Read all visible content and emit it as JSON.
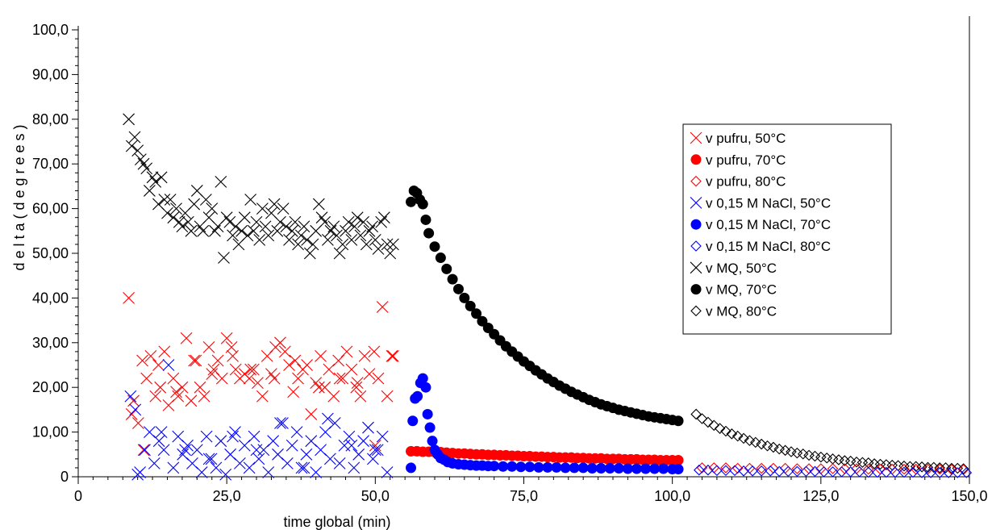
{
  "chart_data": {
    "type": "scatter",
    "title": "",
    "xlabel": "time global (min)",
    "ylabel": "d e l t a   ( d e g r e e s )",
    "xlim": [
      0,
      150
    ],
    "ylim": [
      0,
      100
    ],
    "x_ticks": [
      0,
      25,
      50,
      75,
      100,
      125,
      150
    ],
    "x_tick_labels": [
      "0",
      "25,0",
      "50,0",
      "75,0",
      "100,0",
      "125,0",
      "150,0"
    ],
    "y_ticks": [
      0,
      10,
      20,
      30,
      40,
      50,
      60,
      70,
      80,
      90,
      100
    ],
    "y_tick_labels": [
      "0",
      "10,00",
      "20,00",
      "30,00",
      "40,00",
      "50,00",
      "60,00",
      "70,00",
      "80,00",
      "90,00",
      "100,0"
    ],
    "grid": false,
    "legend_position": "right",
    "series": [
      {
        "name": "v pufru, 50°C",
        "color": "#ff0000",
        "marker": "x",
        "x": [
          8.5,
          9.3,
          10.1,
          10.8,
          11.5,
          12.2,
          13.0,
          13.8,
          14.5,
          15.2,
          16.0,
          16.8,
          17.5,
          18.2,
          19.0,
          19.8,
          20.5,
          21.2,
          22.0,
          22.8,
          23.5,
          24.2,
          25.0,
          25.8,
          26.5,
          27.2,
          28.0,
          28.8,
          29.5,
          30.2,
          31.0,
          31.8,
          32.5,
          33.2,
          34.0,
          34.8,
          35.5,
          36.2,
          37.0,
          37.8,
          38.5,
          39.2,
          40.0,
          40.8,
          41.5,
          42.2,
          43.0,
          43.8,
          44.5,
          45.2,
          46.0,
          46.8,
          47.5,
          48.2,
          49.0,
          49.8,
          50.5,
          51.2,
          52.0,
          52.8,
          9.0,
          11.0,
          13.5,
          16.5,
          19.5,
          22.5,
          26.0,
          29.0,
          33.0,
          36.5,
          40.5,
          44.0,
          47.0,
          50.0,
          53.0
        ],
        "y": [
          40,
          17,
          12,
          26,
          22,
          27,
          18,
          20,
          28,
          16,
          22,
          18,
          20,
          31,
          17,
          26,
          20,
          18,
          29,
          24,
          26,
          22,
          31,
          29,
          24,
          22,
          23,
          22,
          24,
          21,
          18,
          27,
          23,
          29,
          30,
          28,
          25,
          19,
          22,
          24,
          25,
          14,
          21,
          27,
          20,
          24,
          18,
          26,
          22,
          28,
          24,
          20,
          18,
          27,
          23,
          28,
          22,
          38,
          18,
          27,
          14,
          6,
          25,
          19,
          26,
          23,
          27,
          24,
          22,
          26,
          20,
          22,
          21,
          7,
          27
        ]
      },
      {
        "name": "v pufru, 70°C",
        "color": "#ff0000",
        "marker": "circle",
        "x": [
          56.0,
          57.0,
          58.0,
          59.0,
          60.0,
          61.0,
          62.0,
          63.0,
          64.0,
          65.0,
          66.0,
          67.0,
          68.0,
          69.0,
          70.0,
          71.0,
          72.0,
          73.0,
          74.0,
          75.0,
          76.0,
          77.0,
          78.0,
          79.0,
          80.0,
          81.0,
          82.0,
          83.0,
          84.0,
          85.0,
          86.0,
          87.0,
          88.0,
          89.0,
          90.0,
          91.0,
          92.0,
          93.0,
          94.0,
          95.0,
          96.0,
          97.0,
          98.0,
          99.0,
          100.0,
          101.0
        ],
        "y": [
          5.7,
          5.7,
          5.6,
          5.6,
          5.5,
          5.5,
          5.4,
          5.3,
          5.2,
          5.2,
          5.1,
          5.0,
          5.0,
          4.9,
          4.9,
          4.8,
          4.8,
          4.7,
          4.7,
          4.6,
          4.6,
          4.5,
          4.5,
          4.4,
          4.4,
          4.3,
          4.3,
          4.3,
          4.2,
          4.2,
          4.1,
          4.1,
          4.1,
          4.0,
          4.0,
          4.0,
          3.9,
          3.9,
          3.9,
          3.8,
          3.8,
          3.8,
          3.7,
          3.7,
          3.7,
          3.7
        ]
      },
      {
        "name": "v pufru, 80°C",
        "color": "#ff0000",
        "marker": "diamond",
        "x": [
          105,
          107,
          109,
          111,
          113,
          115,
          117,
          119,
          121,
          123,
          125,
          127,
          129,
          131,
          133,
          135,
          137,
          139,
          141,
          143,
          145,
          147,
          149
        ],
        "y": [
          2.0,
          2.0,
          2.0,
          1.9,
          1.9,
          1.9,
          1.9,
          1.9,
          1.8,
          1.8,
          1.8,
          1.8,
          1.8,
          1.8,
          1.7,
          1.7,
          1.7,
          1.7,
          1.7,
          1.7,
          1.7,
          1.6,
          1.6
        ]
      },
      {
        "name": "v 0,15 M NaCl, 50°C",
        "color": "#0000ff",
        "marker": "x",
        "x": [
          8.8,
          9.6,
          10.4,
          11.2,
          12.0,
          12.8,
          13.6,
          14.4,
          15.2,
          16.0,
          16.8,
          17.6,
          18.4,
          19.2,
          20.0,
          20.8,
          21.6,
          22.4,
          23.2,
          24.0,
          24.8,
          25.6,
          26.4,
          27.2,
          28.0,
          28.8,
          29.6,
          30.4,
          31.2,
          32.0,
          32.8,
          33.6,
          34.4,
          35.2,
          36.0,
          36.8,
          37.6,
          38.4,
          39.2,
          40.0,
          40.8,
          41.6,
          42.4,
          43.2,
          44.0,
          44.8,
          45.6,
          46.4,
          47.2,
          48.0,
          48.8,
          49.6,
          50.4,
          51.2,
          52.0,
          10.0,
          14.0,
          18.0,
          22.0,
          26.0,
          30.0,
          34.0,
          38.0,
          42.0,
          46.0,
          50.0
        ],
        "y": [
          18,
          15,
          1,
          6,
          10,
          3,
          8,
          6,
          25,
          2,
          9,
          5,
          7,
          3,
          6,
          1,
          9,
          4,
          2,
          8,
          0.5,
          5,
          10,
          3,
          7,
          2,
          9,
          4,
          6,
          1,
          8,
          5,
          12,
          3,
          7,
          10,
          2,
          5,
          8,
          1,
          6,
          10,
          4,
          12,
          3,
          7,
          9,
          2,
          5,
          8,
          11,
          4,
          6,
          9,
          1,
          0.5,
          10,
          6,
          4,
          9,
          6,
          12,
          2,
          13,
          7,
          6
        ]
      },
      {
        "name": "v 0,15 M NaCl, 70°C",
        "color": "#0000ff",
        "marker": "circle",
        "x": [
          56.0,
          56.3,
          56.7,
          57.1,
          57.6,
          58.0,
          58.5,
          58.8,
          59.2,
          59.6,
          60.0,
          60.5,
          61.0,
          61.6,
          62.2,
          63.0,
          64.0,
          65.0,
          66.0,
          67.0,
          68.0,
          69.0,
          70.0,
          71.5,
          73.0,
          74.5,
          76.0,
          77.5,
          79.0,
          80.5,
          82.0,
          83.5,
          85.0,
          86.5,
          88.0,
          89.5,
          91.0,
          92.5,
          94.0,
          95.5,
          97.0,
          98.5,
          100.0,
          101.0
        ],
        "y": [
          2.0,
          12.5,
          17.5,
          18.0,
          21.0,
          22.0,
          20.0,
          14.0,
          11.0,
          8.0,
          6.0,
          5.0,
          4.2,
          3.8,
          3.3,
          3.0,
          2.8,
          2.7,
          2.6,
          2.5,
          2.5,
          2.4,
          2.4,
          2.3,
          2.3,
          2.2,
          2.2,
          2.1,
          2.1,
          2.1,
          2.0,
          2.0,
          2.0,
          1.9,
          1.9,
          1.9,
          1.9,
          1.8,
          1.8,
          1.8,
          1.8,
          1.8,
          1.7,
          1.7
        ]
      },
      {
        "name": "v 0,15 M NaCl, 80°C",
        "color": "#0000ff",
        "marker": "diamond",
        "x": [
          104.5,
          106,
          107.5,
          109,
          110.5,
          112,
          113.5,
          115,
          116.5,
          118,
          119.5,
          121,
          122.5,
          124,
          125.5,
          127,
          128.5,
          130,
          131.5,
          133,
          134.5,
          136,
          137.5,
          139,
          140.5,
          142,
          143.5,
          145,
          146.5,
          148,
          149.5
        ],
        "y": [
          1.5,
          1.5,
          1.4,
          1.4,
          1.4,
          1.3,
          1.3,
          1.3,
          1.3,
          1.2,
          1.2,
          1.2,
          1.2,
          1.2,
          1.1,
          1.1,
          1.1,
          1.1,
          1.1,
          1.0,
          1.0,
          1.0,
          1.0,
          1.0,
          1.0,
          0.9,
          0.9,
          0.9,
          0.9,
          0.9,
          0.9
        ]
      },
      {
        "name": "v MQ, 50°C",
        "color": "#000000",
        "marker": "x",
        "x": [
          8.5,
          9.0,
          9.5,
          10.0,
          10.5,
          11.0,
          11.5,
          12.0,
          12.5,
          13.0,
          13.5,
          14.0,
          14.5,
          15.0,
          15.5,
          16.0,
          16.5,
          17.0,
          17.5,
          18.0,
          18.5,
          19.0,
          19.5,
          20.0,
          20.5,
          21.0,
          21.5,
          22.0,
          22.5,
          23.0,
          23.5,
          24.0,
          24.5,
          25.0,
          25.5,
          26.0,
          26.5,
          27.0,
          27.5,
          28.0,
          28.5,
          29.0,
          29.5,
          30.0,
          30.5,
          31.0,
          31.5,
          32.0,
          32.5,
          33.0,
          33.5,
          34.0,
          34.5,
          35.0,
          35.5,
          36.0,
          36.5,
          37.0,
          37.5,
          38.0,
          38.5,
          39.0,
          39.5,
          40.0,
          40.5,
          41.0,
          41.5,
          42.0,
          42.5,
          43.0,
          43.5,
          44.0,
          44.5,
          45.0,
          45.5,
          46.0,
          46.5,
          47.0,
          47.5,
          48.0,
          48.5,
          49.0,
          49.5,
          50.0,
          50.5,
          51.0,
          51.5,
          52.0,
          52.5,
          53.0
        ],
        "y": [
          80,
          74,
          76,
          73,
          71,
          70,
          69,
          64,
          67,
          66,
          61,
          67,
          62,
          59,
          62,
          58,
          60,
          57,
          56,
          59,
          57,
          55,
          61,
          64,
          56,
          55,
          62,
          58,
          60,
          55,
          56,
          66,
          49,
          58,
          57,
          54,
          56,
          52,
          55,
          58,
          54,
          62,
          55,
          57,
          53,
          60,
          56,
          54,
          59,
          61,
          55,
          57,
          60,
          56,
          53,
          55,
          57,
          52,
          54,
          56,
          53,
          50,
          52,
          55,
          61,
          58,
          57,
          53,
          55,
          56,
          54,
          50,
          52,
          55,
          57,
          53,
          56,
          58,
          54,
          57,
          52,
          55,
          56,
          53,
          51,
          57,
          58,
          52,
          50,
          52
        ]
      },
      {
        "name": "v MQ, 70°C",
        "color": "#000000",
        "marker": "circle",
        "x": [
          56.0,
          56.5,
          57.0,
          57.5,
          58.0,
          58.5,
          59.0,
          60.0,
          61.0,
          62.0,
          63.0,
          64.0,
          65.0,
          66.0,
          67.0,
          68.0,
          69.0,
          70.0,
          71.0,
          72.0,
          73.0,
          74.0,
          75.0,
          76.0,
          77.0,
          78.0,
          79.0,
          80.0,
          81.0,
          82.0,
          83.0,
          84.0,
          85.0,
          86.0,
          87.0,
          88.0,
          89.0,
          90.0,
          91.0,
          92.0,
          93.0,
          94.0,
          95.0,
          96.0,
          97.0,
          98.0,
          99.0,
          100.0,
          101.0
        ],
        "y": [
          61.5,
          64.0,
          63.5,
          62.0,
          61.0,
          57.5,
          54.5,
          51.5,
          49.0,
          46.5,
          44.2,
          42.0,
          40.0,
          38.2,
          36.5,
          34.8,
          33.3,
          31.9,
          30.5,
          29.2,
          28.0,
          26.9,
          25.8,
          24.8,
          23.8,
          22.9,
          22.0,
          21.2,
          20.4,
          19.7,
          19.0,
          18.4,
          17.8,
          17.2,
          16.7,
          16.2,
          15.8,
          15.4,
          15.0,
          14.7,
          14.4,
          14.1,
          13.8,
          13.5,
          13.3,
          13.1,
          12.9,
          12.7,
          12.5
        ]
      },
      {
        "name": "v MQ, 80°C",
        "color": "#000000",
        "marker": "diamond",
        "x": [
          104.0,
          105.0,
          106.0,
          107.0,
          108.0,
          109.0,
          110.0,
          111.0,
          112.0,
          113.0,
          114.0,
          115.0,
          116.0,
          117.0,
          118.0,
          119.0,
          120.0,
          121.0,
          122.0,
          123.0,
          124.0,
          125.0,
          126.0,
          127.0,
          128.0,
          129.0,
          130.0,
          131.0,
          132.0,
          133.0,
          134.0,
          135.0,
          136.0,
          137.0,
          138.0,
          139.0,
          140.0,
          141.0,
          142.0,
          143.0,
          144.0,
          145.0,
          146.0,
          147.0,
          148.0,
          149.0
        ],
        "y": [
          14.0,
          13.0,
          12.2,
          11.5,
          10.8,
          10.2,
          9.6,
          9.1,
          8.6,
          8.1,
          7.7,
          7.3,
          6.9,
          6.6,
          6.2,
          5.9,
          5.6,
          5.3,
          5.1,
          4.8,
          4.6,
          4.4,
          4.2,
          4.0,
          3.8,
          3.6,
          3.5,
          3.3,
          3.2,
          3.1,
          2.9,
          2.8,
          2.7,
          2.6,
          2.5,
          2.4,
          2.3,
          2.3,
          2.2,
          2.1,
          2.1,
          2.0,
          2.0,
          1.9,
          1.9,
          1.8
        ]
      }
    ]
  }
}
